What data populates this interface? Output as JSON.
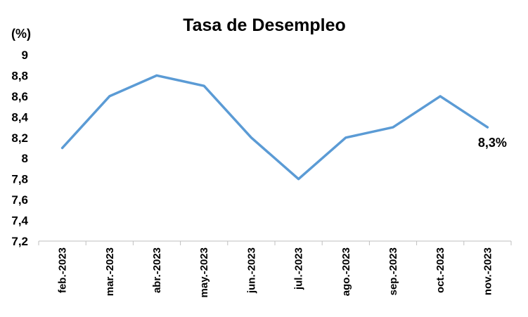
{
  "chart_data": {
    "type": "line",
    "title": "Tasa de Desempleo",
    "unit_label": "(%)",
    "xlabel": "",
    "ylabel": "",
    "categories": [
      "feb.-2023",
      "mar.-2023",
      "abr.-2023",
      "may.-2023",
      "jun.-2023",
      "jul.-2023",
      "ago.-2023",
      "sep.-2023",
      "oct.-2023",
      "nov.-2023"
    ],
    "series": [
      {
        "values": [
          8.1,
          8.6,
          8.8,
          8.7,
          8.2,
          7.8,
          8.2,
          8.3,
          8.6,
          8.3
        ],
        "color": "#5B9BD5"
      }
    ],
    "ylim": [
      7.2,
      9
    ],
    "yticks": [
      "9",
      "8,8",
      "8,6",
      "8,4",
      "8,2",
      "8",
      "7,8",
      "7,6",
      "7,4",
      "7,2"
    ],
    "annotation": {
      "text": "8,3%",
      "category": "nov.-2023"
    },
    "grid": false,
    "legend": "none"
  }
}
